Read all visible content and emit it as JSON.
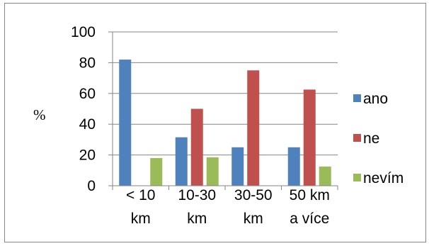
{
  "chart_data": {
    "type": "bar",
    "title": "",
    "xlabel": "",
    "ylabel": "%",
    "ylim": [
      0,
      100
    ],
    "yticks": [
      0,
      20,
      40,
      60,
      80,
      100
    ],
    "grid": true,
    "legend_position": "right",
    "categories": [
      [
        "< 10",
        "km"
      ],
      [
        "10-30",
        "km"
      ],
      [
        "30-50",
        "km"
      ],
      [
        "50 km",
        "a více"
      ]
    ],
    "series": [
      {
        "name": "ano",
        "color": "#4f81bd",
        "values": [
          82,
          31.5,
          25,
          25
        ]
      },
      {
        "name": "ne",
        "color": "#c0504d",
        "values": [
          0,
          50,
          75,
          62.5
        ]
      },
      {
        "name": "nevím",
        "color": "#9bbb59",
        "values": [
          18,
          18.5,
          0,
          12.5
        ]
      }
    ]
  }
}
